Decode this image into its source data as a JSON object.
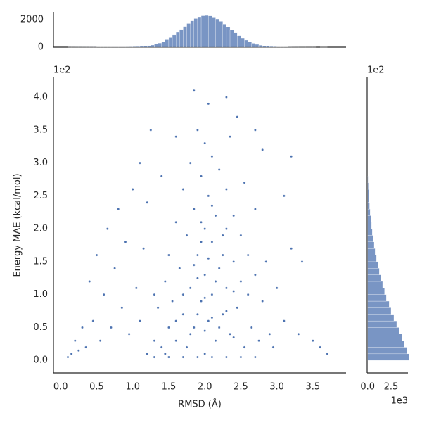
{
  "chart_data": [
    {
      "type": "scatter",
      "xlabel": "RMSD (Å)",
      "ylabel": "Energy MAE (kcal/mol)",
      "y_offset_label": "1e2",
      "color": "#4c72b0",
      "x": [
        1.2,
        1.3,
        1.35,
        1.4,
        1.45,
        1.5,
        1.5,
        1.55,
        1.6,
        1.6,
        1.65,
        1.7,
        1.7,
        1.75,
        1.75,
        1.8,
        1.8,
        1.85,
        1.85,
        1.9,
        1.9,
        1.95,
        1.95,
        2.0,
        2.0,
        2.0,
        2.0,
        2.05,
        2.05,
        2.1,
        2.1,
        2.1,
        2.15,
        2.15,
        2.2,
        2.2,
        2.25,
        2.25,
        2.3,
        2.3,
        2.35,
        2.35,
        2.4,
        2.4,
        2.45,
        2.5,
        2.5,
        2.55,
        2.55,
        2.6,
        2.6,
        2.65,
        2.7,
        2.7,
        2.75,
        2.8,
        2.85,
        2.9,
        2.95,
        3.0,
        0.1,
        0.15,
        0.2,
        0.25,
        0.3,
        0.35,
        0.4,
        0.45,
        0.5,
        0.55,
        0.6,
        0.65,
        0.7,
        0.75,
        0.8,
        0.85,
        0.9,
        0.95,
        1.0,
        1.05,
        1.1,
        1.1,
        1.15,
        1.2,
        1.25,
        1.3,
        1.4,
        1.45,
        1.85,
        2.05,
        2.45,
        2.7,
        3.1,
        3.1,
        3.2,
        3.3,
        3.35,
        3.5,
        3.7,
        3.6,
        2.8,
        3.2,
        1.6,
        2.3,
        1.3,
        1.5,
        1.7,
        1.9,
        2.1,
        2.3,
        2.5,
        2.7,
        1.6,
        1.8,
        2.0,
        2.2,
        2.4,
        1.9,
        2.1,
        2.3,
        1.7,
        2.0,
        2.4,
        1.9,
        2.15,
        2.05,
        1.85,
        2.25,
        1.95,
        2.1,
        1.95,
        2.3
      ],
      "values": [
        0.1,
        0.3,
        0.8,
        0.2,
        1.2,
        0.5,
        1.6,
        0.9,
        2.1,
        0.3,
        1.4,
        0.7,
        2.6,
        1.9,
        0.2,
        1.1,
        3.0,
        2.3,
        0.5,
        1.6,
        3.5,
        0.9,
        2.8,
        0.1,
        1.3,
        2.0,
        3.3,
        0.6,
        2.5,
        1.0,
        1.8,
        3.1,
        0.3,
        2.2,
        1.4,
        2.9,
        0.7,
        1.9,
        1.1,
        2.6,
        0.4,
        3.4,
        1.5,
        2.2,
        0.8,
        1.2,
        1.9,
        0.2,
        2.7,
        1.0,
        1.6,
        0.5,
        1.3,
        2.3,
        0.3,
        0.9,
        1.5,
        0.4,
        0.2,
        1.1,
        0.05,
        0.1,
        0.3,
        0.15,
        0.5,
        0.2,
        1.2,
        0.6,
        1.6,
        0.3,
        1.0,
        2.0,
        0.5,
        1.4,
        2.3,
        0.8,
        1.8,
        0.4,
        2.6,
        1.1,
        0.6,
        3.0,
        1.7,
        2.4,
        3.5,
        1.0,
        2.8,
        0.1,
        4.1,
        3.9,
        3.7,
        3.5,
        0.6,
        2.5,
        1.7,
        0.4,
        1.5,
        0.3,
        0.1,
        0.2,
        3.2,
        3.1,
        3.4,
        4.0,
        0.05,
        0.05,
        0.05,
        0.05,
        0.05,
        0.05,
        0.05,
        0.05,
        0.6,
        0.4,
        0.45,
        0.5,
        0.35,
        0.7,
        0.65,
        0.75,
        1.0,
        0.95,
        1.05,
        1.25,
        1.2,
        1.55,
        1.45,
        1.6,
        2.1,
        2.35,
        1.8,
        2.0
      ],
      "xlim": [
        -0.1,
        3.96
      ],
      "ylim": [
        -0.19,
        4.3
      ],
      "xticks": [
        {
          "value": 0,
          "label": "0.0"
        },
        0.5,
        {
          "value": 1,
          "label": "1.0"
        },
        1.5,
        {
          "value": 2,
          "label": "2.0"
        },
        2.5,
        {
          "value": 3,
          "label": "3.0"
        },
        3.5
      ],
      "yticks": [
        {
          "value": 0,
          "label": "0.0"
        },
        0.5,
        {
          "value": 1,
          "label": "1.0"
        },
        1.5,
        {
          "value": 2,
          "label": "2.0"
        },
        2.5,
        {
          "value": 3,
          "label": "3.0"
        },
        3.5,
        {
          "value": 4,
          "label": "4.0"
        }
      ]
    },
    {
      "type": "histogram",
      "orientation": "vertical",
      "color": "#4c72b0",
      "bins": [
        0.1,
        0.15,
        0.2,
        0.25,
        0.3,
        0.35,
        0.4,
        0.45,
        0.5,
        0.55,
        0.6,
        0.65,
        0.7,
        0.75,
        0.8,
        0.85,
        0.9,
        0.95,
        1.0,
        1.05,
        1.1,
        1.15,
        1.2,
        1.25,
        1.3,
        1.35,
        1.4,
        1.45,
        1.5,
        1.55,
        1.6,
        1.65,
        1.7,
        1.75,
        1.8,
        1.85,
        1.9,
        1.95,
        2.0,
        2.05,
        2.1,
        2.15,
        2.2,
        2.25,
        2.3,
        2.35,
        2.4,
        2.45,
        2.5,
        2.55,
        2.6,
        2.65,
        2.7,
        2.75,
        2.8,
        2.85,
        2.9,
        2.95,
        3.0,
        3.05,
        3.1,
        3.15,
        3.2,
        3.25,
        3.3,
        3.35,
        3.4,
        3.45,
        3.5,
        3.55,
        3.6,
        3.65,
        3.7
      ],
      "values": [
        3,
        4,
        5,
        5,
        6,
        6,
        7,
        7,
        8,
        8,
        9,
        10,
        12,
        14,
        16,
        18,
        20,
        24,
        30,
        40,
        55,
        80,
        106,
        153,
        217,
        302,
        409,
        540,
        694,
        875,
        1075,
        1286,
        1504,
        1716,
        1910,
        2075,
        2201,
        2277,
        2300,
        2266,
        2179,
        2046,
        1874,
        1676,
        1461,
        1244,
        1033,
        837,
        664,
        513,
        384,
        284,
        203,
        142,
        97,
        65,
        42,
        28,
        18,
        12,
        8,
        6,
        4,
        3,
        2,
        2,
        1,
        1,
        1,
        0,
        1,
        1
      ],
      "xlim": [
        -0.1,
        3.96
      ],
      "ylim": [
        0,
        2560
      ],
      "yticks": [
        0,
        2000
      ]
    },
    {
      "type": "histogram",
      "orientation": "horizontal",
      "color": "#4c72b0",
      "y_offset_label": "1e2",
      "x_offset_label": "1e3",
      "bins": [
        0,
        0.1,
        0.2,
        0.3,
        0.4,
        0.5,
        0.6,
        0.7,
        0.8,
        0.9,
        1.0,
        1.1,
        1.2,
        1.3,
        1.4,
        1.5,
        1.6,
        1.7,
        1.8,
        1.9,
        2.0,
        2.1,
        2.2,
        2.3,
        2.4,
        2.5,
        2.6,
        2.7,
        2.8
      ],
      "values": [
        4.4,
        4.2,
        3.9,
        3.7,
        3.4,
        3.1,
        2.8,
        2.5,
        2.3,
        2.0,
        1.8,
        1.6,
        1.4,
        1.25,
        1.1,
        0.95,
        0.8,
        0.7,
        0.6,
        0.5,
        0.42,
        0.34,
        0.27,
        0.21,
        0.16,
        0.12,
        0.08,
        0.05
      ],
      "xlim": [
        -0.05,
        4.3
      ],
      "ylim": [
        -0.19,
        4.3
      ],
      "xticks": [
        {
          "value": 0,
          "label": "0.0"
        },
        2.5
      ]
    }
  ]
}
